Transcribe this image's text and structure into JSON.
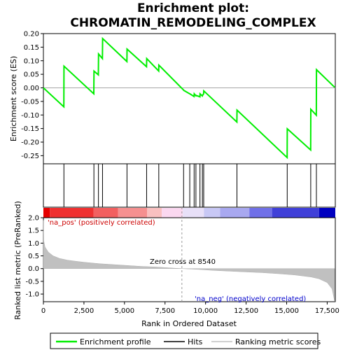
{
  "chart_data": {
    "type": "line",
    "title_line1": "Enrichment plot:",
    "title_line2": "CHROMATIN_REMODELING_COMPLEX",
    "xlabel": "Rank in Ordered Dataset",
    "ylabel_top": "Enrichment score (ES)",
    "ylabel_bottom": "Ranked list metric (PreRanked)",
    "x_ticks": [
      0,
      2500,
      5000,
      7500,
      10000,
      12500,
      15000,
      17500
    ],
    "x_tick_labels": [
      "0",
      "2,500",
      "5,000",
      "7,500",
      "10,000",
      "12,500",
      "15,000",
      "17,500"
    ],
    "xlim": [
      0,
      18000
    ],
    "es_ylim": [
      -0.28,
      0.2
    ],
    "es_ticks": [
      0.2,
      0.15,
      0.1,
      0.05,
      0.0,
      -0.05,
      -0.1,
      -0.15,
      -0.2,
      -0.25
    ],
    "es_tick_labels": [
      "0.20",
      "0.15",
      "0.10",
      "0.05",
      "0.00",
      "-0.05",
      "-0.10",
      "-0.15",
      "-0.20",
      "-0.25"
    ],
    "metric_ylim": [
      -1.3,
      2.0
    ],
    "metric_ticks": [
      2.0,
      1.5,
      1.0,
      0.5,
      0.0,
      -0.5,
      -1.0
    ],
    "metric_tick_labels": [
      "2.0",
      "1.5",
      "1.0",
      "0.5",
      "0.0",
      "-0.5",
      "-1.0"
    ],
    "enrichment_profile": {
      "name": "Enrichment profile",
      "color": "#00ee00",
      "points": [
        [
          0,
          0.0
        ],
        [
          1260,
          -0.07
        ],
        [
          1270,
          0.08
        ],
        [
          3110,
          -0.022
        ],
        [
          3120,
          0.062
        ],
        [
          3390,
          0.048
        ],
        [
          3400,
          0.125
        ],
        [
          3640,
          0.108
        ],
        [
          3650,
          0.182
        ],
        [
          5150,
          0.097
        ],
        [
          5160,
          0.143
        ],
        [
          6360,
          0.078
        ],
        [
          6370,
          0.108
        ],
        [
          7110,
          0.062
        ],
        [
          7120,
          0.084
        ],
        [
          8640,
          -0.008
        ],
        [
          8650,
          -0.009
        ],
        [
          9020,
          -0.022
        ],
        [
          9030,
          -0.022
        ],
        [
          9290,
          -0.032
        ],
        [
          9300,
          -0.022
        ],
        [
          9400,
          -0.029
        ],
        [
          9410,
          -0.028
        ],
        [
          9650,
          -0.033
        ],
        [
          9660,
          -0.022
        ],
        [
          9800,
          -0.03
        ],
        [
          9810,
          -0.028
        ],
        [
          9880,
          -0.022
        ],
        [
          9890,
          -0.011
        ],
        [
          11930,
          -0.126
        ],
        [
          11940,
          -0.082
        ],
        [
          15030,
          -0.257
        ],
        [
          15040,
          -0.151
        ],
        [
          16480,
          -0.229
        ],
        [
          16490,
          -0.079
        ],
        [
          16830,
          -0.101
        ],
        [
          16840,
          0.067
        ],
        [
          17960,
          0.002
        ]
      ]
    },
    "hits": {
      "name": "Hits",
      "positions": [
        1265,
        3115,
        3395,
        3645,
        5155,
        6365,
        7115,
        8645,
        9025,
        9295,
        9405,
        9655,
        9805,
        9885,
        11935,
        15035,
        16485,
        16835
      ]
    },
    "ranking_metric": {
      "name": "Ranking metric scores",
      "color": "#c0c0c0",
      "points": [
        [
          0,
          1.9
        ],
        [
          20,
          1.1
        ],
        [
          100,
          0.85
        ],
        [
          300,
          0.65
        ],
        [
          600,
          0.5
        ],
        [
          1000,
          0.4
        ],
        [
          1500,
          0.33
        ],
        [
          2000,
          0.29
        ],
        [
          2500,
          0.25
        ],
        [
          3000,
          0.22
        ],
        [
          3500,
          0.19
        ],
        [
          4000,
          0.17
        ],
        [
          5000,
          0.13
        ],
        [
          6000,
          0.09
        ],
        [
          7000,
          0.06
        ],
        [
          8000,
          0.02
        ],
        [
          8540,
          0.0
        ],
        [
          9500,
          -0.03
        ],
        [
          10500,
          -0.07
        ],
        [
          11500,
          -0.1
        ],
        [
          12500,
          -0.13
        ],
        [
          13500,
          -0.16
        ],
        [
          14500,
          -0.2
        ],
        [
          15500,
          -0.25
        ],
        [
          16500,
          -0.33
        ],
        [
          17000,
          -0.4
        ],
        [
          17500,
          -0.55
        ],
        [
          17800,
          -0.8
        ],
        [
          17960,
          -1.3
        ]
      ]
    },
    "zero_cross": 8540,
    "zero_cross_label": "Zero cross at 8540",
    "pos_label": "'na_pos' (positively correlated)",
    "neg_label": "'na_neg' (negatively correlated)",
    "legend": [
      "Enrichment profile",
      "Hits",
      "Ranking metric scores"
    ],
    "legend_placement": "bottom"
  }
}
